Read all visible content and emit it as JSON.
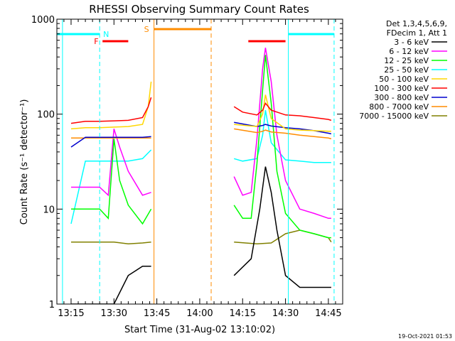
{
  "chart_data": {
    "type": "line",
    "title": "RHESSI Observing Summary Count Rates",
    "xlabel": "Start Time (31-Aug-02 13:10:02)",
    "ylabel": "Count Rate (s⁻¹ detector⁻¹)",
    "xscale": "time",
    "yscale": "log",
    "xlim": [
      "13:10:02",
      "14:50:00"
    ],
    "ylim": [
      1,
      1000
    ],
    "x_ticks": [
      "13:15",
      "13:30",
      "13:45",
      "14:00",
      "14:15",
      "14:30",
      "14:45"
    ],
    "y_ticks": [
      "1",
      "10",
      "100",
      "1000"
    ],
    "legend": {
      "header": [
        "Det 1,3,4,5,6,9,",
        "FDecim 1, Att 1"
      ],
      "placement": "outside-right"
    },
    "flags": [
      {
        "label": "N",
        "color": "#00ffff"
      },
      {
        "label": "F",
        "color": "#ff0000"
      },
      {
        "label": "S",
        "color": "#ff8c00"
      }
    ],
    "series": [
      {
        "name": "3 - 6 keV",
        "color": "#000000",
        "x": [
          "13:15",
          "13:20",
          "13:25",
          "13:30",
          "13:35",
          "13:40",
          "13:43",
          "14:12",
          "14:18",
          "14:21",
          "14:23",
          "14:25",
          "14:27",
          "14:30",
          "14:35",
          "14:40",
          "14:45",
          "14:46"
        ],
        "y": [
          1,
          1,
          1,
          1,
          2,
          2.5,
          2.5,
          2,
          3,
          10,
          28,
          15,
          6,
          2,
          1.5,
          1.5,
          1.5,
          1.5
        ]
      },
      {
        "name": "6 - 12 keV",
        "color": "#ff00ff",
        "x": [
          "13:15",
          "13:20",
          "13:25",
          "13:28",
          "13:30",
          "13:32",
          "13:35",
          "13:40",
          "13:43",
          "14:12",
          "14:15",
          "14:18",
          "14:20",
          "14:22",
          "14:23",
          "14:25",
          "14:27",
          "14:30",
          "14:35",
          "14:40",
          "14:45",
          "14:46"
        ],
        "y": [
          17,
          17,
          17,
          14,
          70,
          45,
          25,
          14,
          15,
          22,
          14,
          15,
          55,
          300,
          500,
          220,
          60,
          20,
          10,
          9,
          8,
          8
        ]
      },
      {
        "name": "12 - 25 keV",
        "color": "#00ff00",
        "x": [
          "13:15",
          "13:20",
          "13:25",
          "13:28",
          "13:30",
          "13:32",
          "13:35",
          "13:40",
          "13:43",
          "14:12",
          "14:15",
          "14:18",
          "14:20",
          "14:22",
          "14:23",
          "14:25",
          "14:27",
          "14:30",
          "14:35",
          "14:40",
          "14:45",
          "14:46"
        ],
        "y": [
          10,
          10,
          10,
          8,
          55,
          20,
          11,
          7,
          10,
          11,
          8,
          8,
          30,
          180,
          420,
          130,
          25,
          9,
          6,
          5.5,
          5,
          5
        ]
      },
      {
        "name": "25 - 50 keV",
        "color": "#00ffff",
        "x": [
          "13:15",
          "13:20",
          "13:25",
          "13:30",
          "13:35",
          "13:40",
          "13:43",
          "14:12",
          "14:15",
          "14:20",
          "14:22",
          "14:23",
          "14:25",
          "14:30",
          "14:35",
          "14:40",
          "14:45",
          "14:46"
        ],
        "y": [
          7,
          32,
          32,
          32,
          32,
          34,
          42,
          34,
          32,
          34,
          60,
          110,
          50,
          33,
          32,
          31,
          31,
          31
        ]
      },
      {
        "name": "50 - 100 keV",
        "color": "#ffd700",
        "x": [
          "13:15",
          "13:20",
          "13:25",
          "13:30",
          "13:35",
          "13:40",
          "13:42",
          "13:43",
          "14:12",
          "14:20",
          "14:22",
          "14:23",
          "14:25",
          "14:30",
          "14:35",
          "14:40",
          "14:45",
          "14:46"
        ],
        "y": [
          70,
          72,
          72,
          73,
          74,
          78,
          120,
          220,
          78,
          74,
          100,
          160,
          90,
          70,
          68,
          67,
          66,
          66
        ]
      },
      {
        "name": "100 - 300 keV",
        "color": "#ff0000",
        "x": [
          "13:15",
          "13:20",
          "13:25",
          "13:30",
          "13:35",
          "13:40",
          "13:42",
          "13:43",
          "14:12",
          "14:15",
          "14:20",
          "14:22",
          "14:23",
          "14:25",
          "14:30",
          "14:35",
          "14:40",
          "14:45",
          "14:46"
        ],
        "y": [
          80,
          84,
          84,
          85,
          86,
          92,
          120,
          150,
          120,
          105,
          98,
          110,
          130,
          110,
          98,
          96,
          92,
          88,
          86
        ]
      },
      {
        "name": "300 - 800 keV",
        "color": "#0000cd",
        "x": [
          "13:15",
          "13:20",
          "13:25",
          "13:30",
          "13:35",
          "13:40",
          "13:43",
          "14:12",
          "14:20",
          "14:22",
          "14:23",
          "14:25",
          "14:30",
          "14:35",
          "14:40",
          "14:45",
          "14:46"
        ],
        "y": [
          45,
          57,
          57,
          57,
          57,
          57,
          58,
          82,
          74,
          76,
          78,
          75,
          72,
          70,
          67,
          63,
          62
        ]
      },
      {
        "name": "800 - 7000 keV",
        "color": "#ff8c00",
        "x": [
          "13:15",
          "13:20",
          "13:25",
          "13:30",
          "13:35",
          "13:40",
          "13:43",
          "14:12",
          "14:20",
          "14:22",
          "14:23",
          "14:25",
          "14:30",
          "14:35",
          "14:40",
          "14:45",
          "14:46"
        ],
        "y": [
          56,
          56,
          56,
          56,
          56,
          56,
          56,
          70,
          64,
          66,
          68,
          65,
          63,
          60,
          58,
          56,
          55
        ]
      },
      {
        "name": "7000 - 15000 keV",
        "color": "#808000",
        "x": [
          "13:15",
          "13:20",
          "13:25",
          "13:30",
          "13:35",
          "13:40",
          "13:43",
          "14:12",
          "14:20",
          "14:25",
          "14:30",
          "14:35",
          "14:40",
          "14:45",
          "14:46"
        ],
        "y": [
          4.5,
          4.5,
          4.5,
          4.5,
          4.3,
          4.4,
          4.5,
          4.5,
          4.3,
          4.4,
          5.5,
          6,
          5.5,
          5,
          4.5
        ]
      }
    ]
  },
  "footer_timestamp": "19-Oct-2021 01:53"
}
